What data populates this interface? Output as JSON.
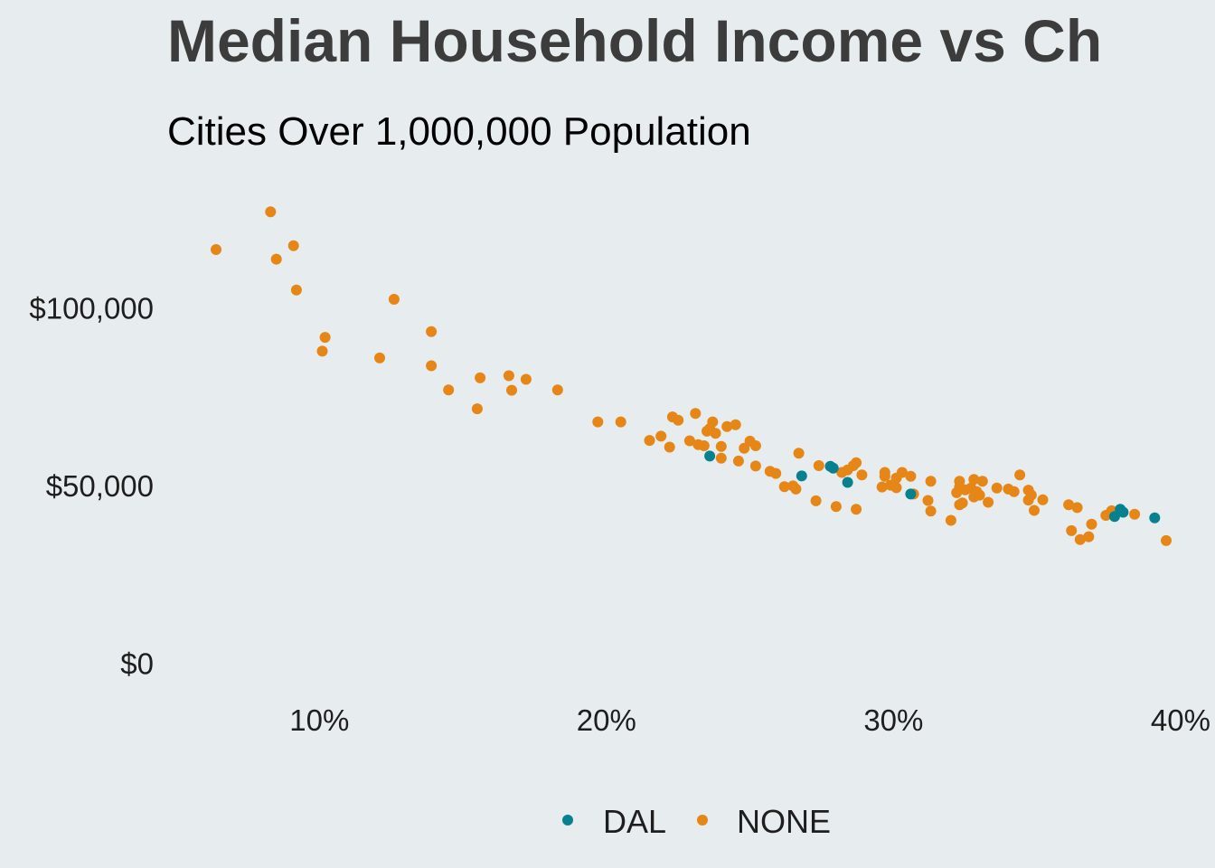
{
  "chart_data": {
    "type": "scatter",
    "title": "Median Household Income vs Ch",
    "subtitle": "Cities Over 1,000,000 Population",
    "xlabel": "",
    "ylabel": "",
    "xlim": [
      0.047,
      0.412
    ],
    "ylim": [
      -8000,
      137000
    ],
    "x_ticks": [
      0.1,
      0.2,
      0.3,
      0.4
    ],
    "x_tick_labels": [
      "10%",
      "20%",
      "30%",
      "40%"
    ],
    "y_ticks": [
      0,
      50000,
      100000
    ],
    "y_tick_labels": [
      "$0",
      "$50,000",
      "$100,000"
    ],
    "grid": false,
    "legend_position": "bottom",
    "series": [
      {
        "name": "DAL",
        "color": "#07818F",
        "points": [
          [
            0.236,
            58300
          ],
          [
            0.268,
            52700
          ],
          [
            0.278,
            55400
          ],
          [
            0.279,
            54900
          ],
          [
            0.284,
            50900
          ],
          [
            0.306,
            47600
          ],
          [
            0.377,
            41300
          ],
          [
            0.379,
            43300
          ],
          [
            0.38,
            42500
          ],
          [
            0.391,
            40900
          ]
        ]
      },
      {
        "name": "NONE",
        "color": "#E58617",
        "points": [
          [
            0.064,
            116400
          ],
          [
            0.083,
            127000
          ],
          [
            0.085,
            113700
          ],
          [
            0.091,
            117500
          ],
          [
            0.092,
            105000
          ],
          [
            0.101,
            87800
          ],
          [
            0.102,
            91700
          ],
          [
            0.121,
            85900
          ],
          [
            0.126,
            102400
          ],
          [
            0.139,
            93300
          ],
          [
            0.139,
            83700
          ],
          [
            0.145,
            76900
          ],
          [
            0.155,
            71600
          ],
          [
            0.156,
            80300
          ],
          [
            0.166,
            80900
          ],
          [
            0.167,
            76800
          ],
          [
            0.172,
            79900
          ],
          [
            0.183,
            76900
          ],
          [
            0.197,
            67900
          ],
          [
            0.205,
            67900
          ],
          [
            0.215,
            62700
          ],
          [
            0.219,
            63900
          ],
          [
            0.222,
            60800
          ],
          [
            0.223,
            69300
          ],
          [
            0.225,
            68400
          ],
          [
            0.229,
            62600
          ],
          [
            0.231,
            70300
          ],
          [
            0.232,
            61500
          ],
          [
            0.234,
            61200
          ],
          [
            0.235,
            65300
          ],
          [
            0.236,
            66000
          ],
          [
            0.237,
            67900
          ],
          [
            0.238,
            64700
          ],
          [
            0.24,
            61000
          ],
          [
            0.24,
            57700
          ],
          [
            0.242,
            66600
          ],
          [
            0.245,
            67100
          ],
          [
            0.246,
            56900
          ],
          [
            0.248,
            60500
          ],
          [
            0.25,
            62500
          ],
          [
            0.252,
            61200
          ],
          [
            0.252,
            55500
          ],
          [
            0.257,
            54000
          ],
          [
            0.259,
            53400
          ],
          [
            0.262,
            49700
          ],
          [
            0.265,
            49900
          ],
          [
            0.266,
            49000
          ],
          [
            0.267,
            59100
          ],
          [
            0.273,
            45700
          ],
          [
            0.274,
            55600
          ],
          [
            0.28,
            44100
          ],
          [
            0.282,
            53700
          ],
          [
            0.284,
            54400
          ],
          [
            0.286,
            55600
          ],
          [
            0.287,
            56400
          ],
          [
            0.287,
            43300
          ],
          [
            0.289,
            53000
          ],
          [
            0.296,
            49600
          ],
          [
            0.297,
            53700
          ],
          [
            0.297,
            52600
          ],
          [
            0.299,
            50100
          ],
          [
            0.301,
            52100
          ],
          [
            0.301,
            49400
          ],
          [
            0.303,
            53700
          ],
          [
            0.306,
            52600
          ],
          [
            0.307,
            47600
          ],
          [
            0.312,
            45800
          ],
          [
            0.313,
            51200
          ],
          [
            0.313,
            42800
          ],
          [
            0.32,
            40200
          ],
          [
            0.322,
            48000
          ],
          [
            0.323,
            44600
          ],
          [
            0.323,
            51200
          ],
          [
            0.323,
            49600
          ],
          [
            0.324,
            45100
          ],
          [
            0.325,
            48800
          ],
          [
            0.327,
            49300
          ],
          [
            0.328,
            51700
          ],
          [
            0.328,
            46800
          ],
          [
            0.329,
            48300
          ],
          [
            0.33,
            47300
          ],
          [
            0.331,
            51200
          ],
          [
            0.333,
            45300
          ],
          [
            0.336,
            49300
          ],
          [
            0.34,
            49000
          ],
          [
            0.342,
            48300
          ],
          [
            0.344,
            53000
          ],
          [
            0.347,
            45900
          ],
          [
            0.347,
            48700
          ],
          [
            0.348,
            47300
          ],
          [
            0.349,
            43000
          ],
          [
            0.352,
            46000
          ],
          [
            0.361,
            44600
          ],
          [
            0.362,
            37300
          ],
          [
            0.364,
            43800
          ],
          [
            0.365,
            34800
          ],
          [
            0.368,
            35600
          ],
          [
            0.369,
            39100
          ],
          [
            0.374,
            41600
          ],
          [
            0.376,
            42900
          ],
          [
            0.384,
            41900
          ],
          [
            0.395,
            34500
          ]
        ]
      }
    ]
  }
}
